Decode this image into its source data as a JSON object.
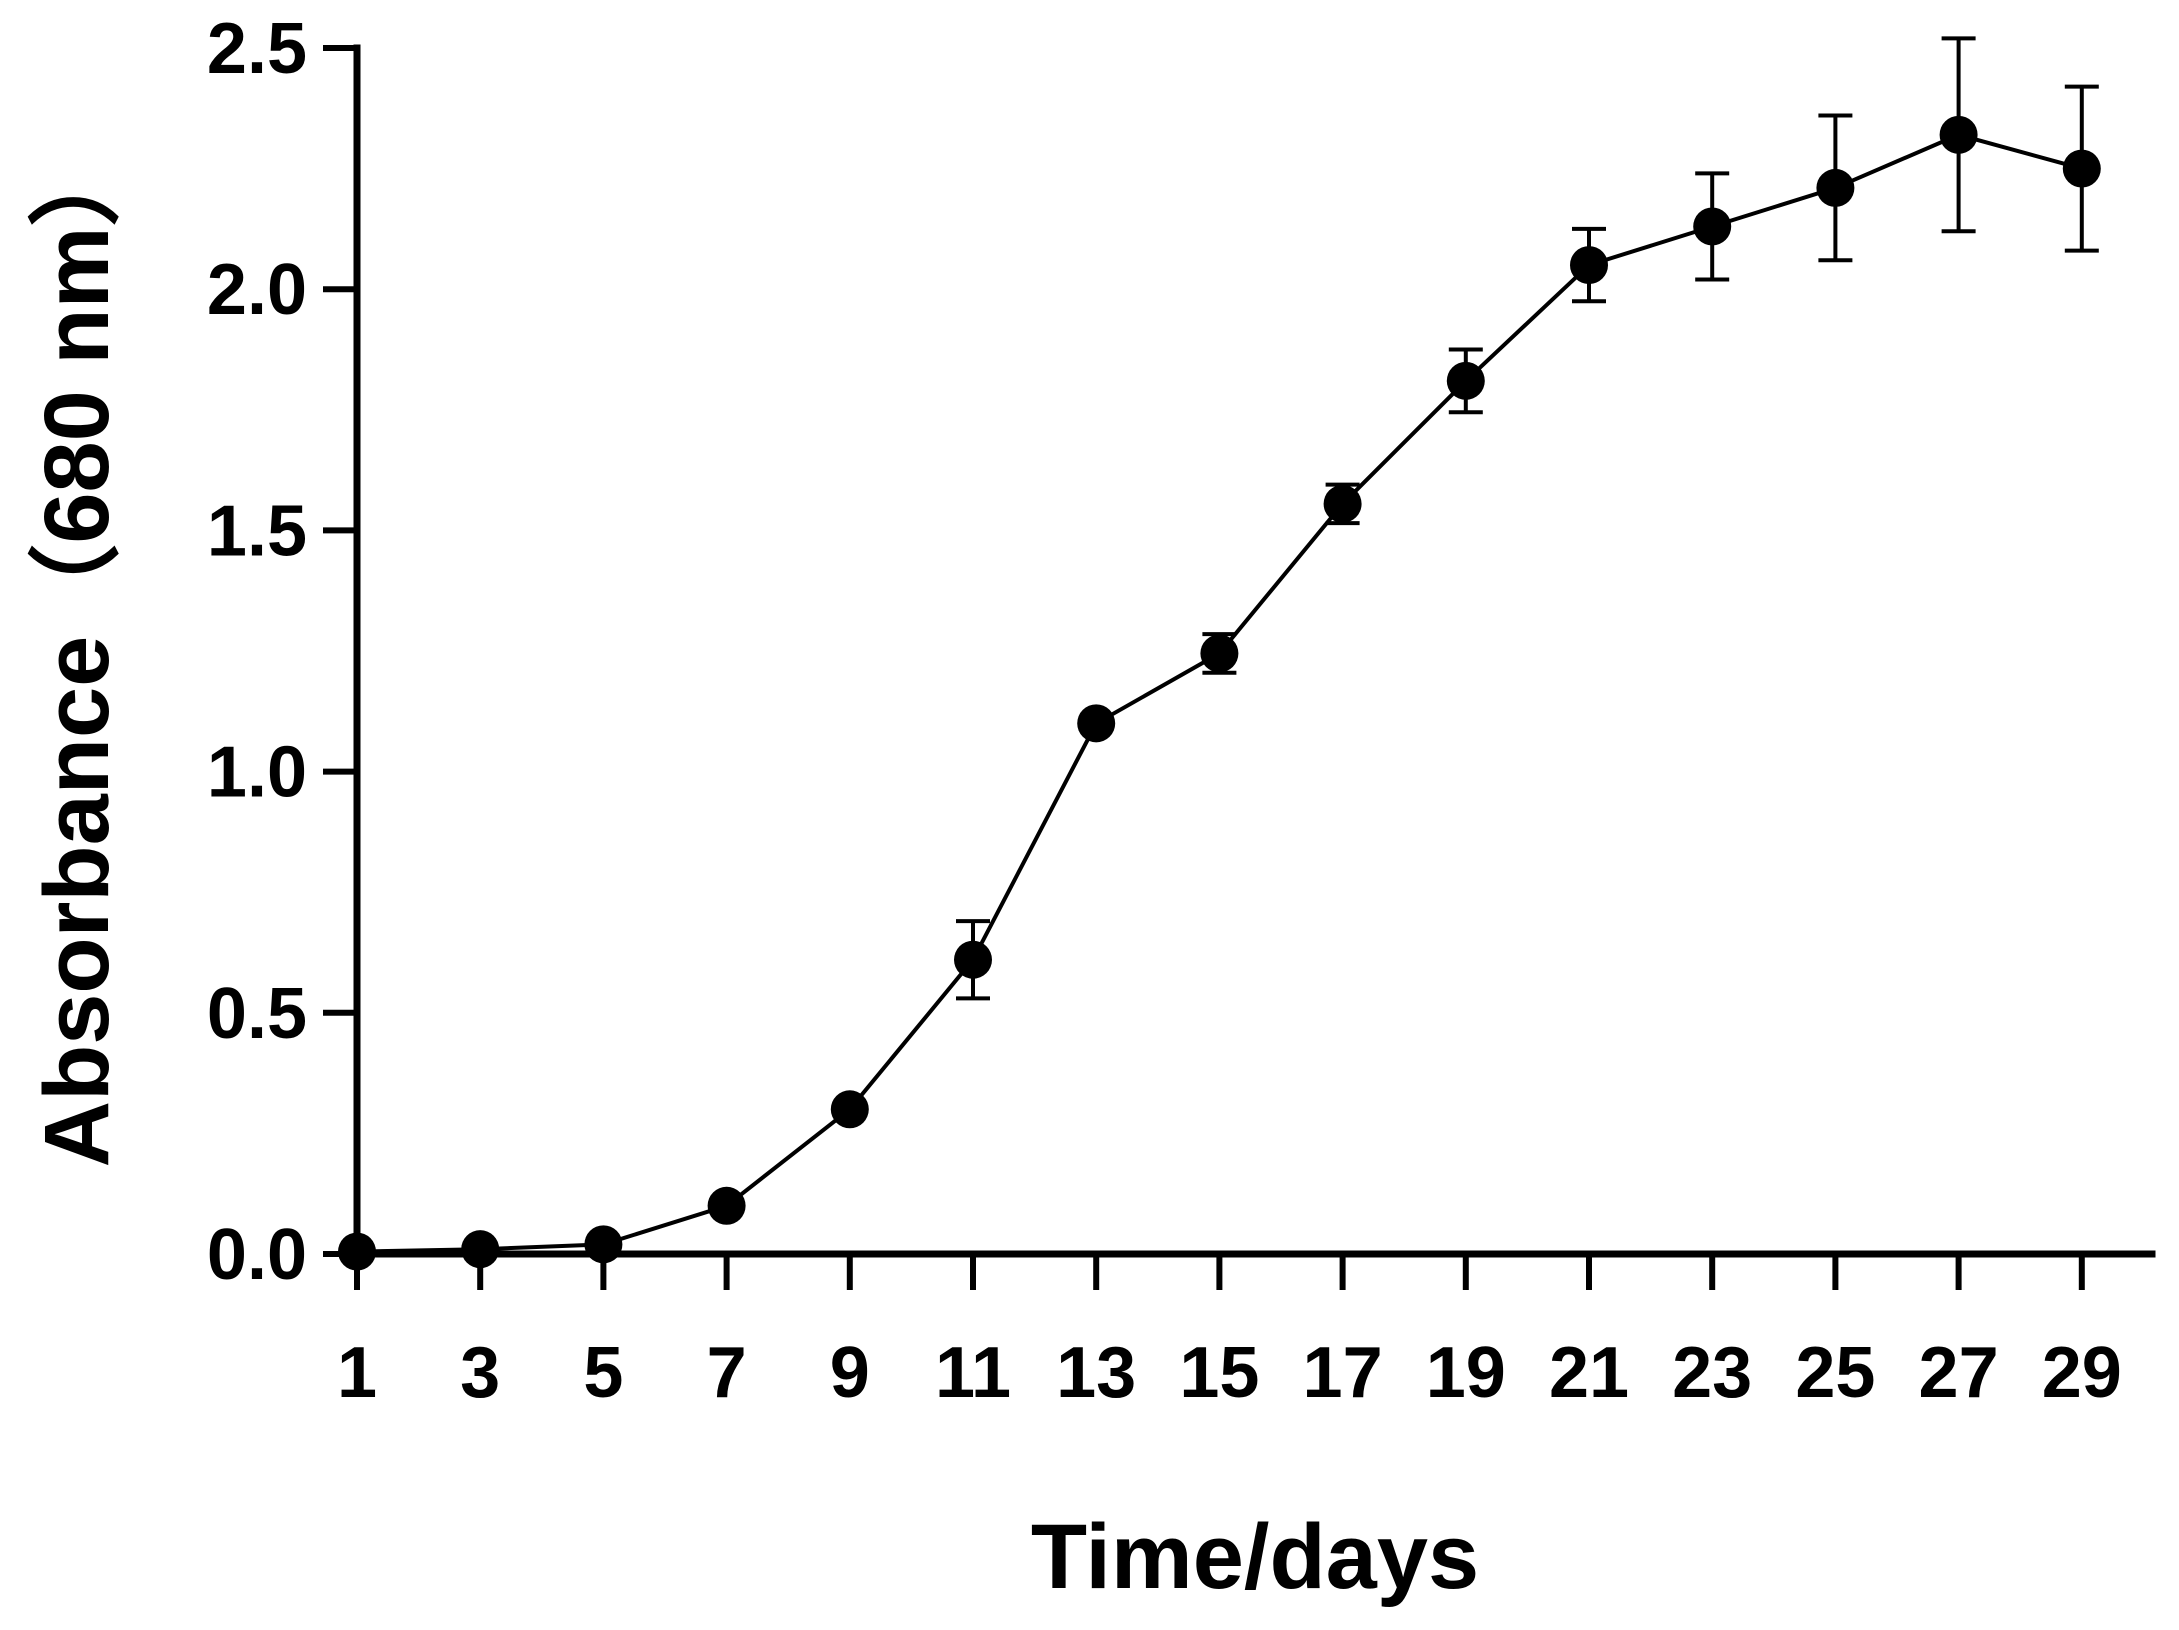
{
  "chart_data": {
    "type": "line",
    "title": "",
    "xlabel": "Time/days",
    "ylabel": "Absorbance（680 nm）",
    "xlim": [
      1,
      30
    ],
    "ylim": [
      0,
      2.5
    ],
    "x_ticks": [
      1,
      3,
      5,
      7,
      9,
      11,
      13,
      15,
      17,
      19,
      21,
      23,
      25,
      27,
      29
    ],
    "y_ticks": [
      "0.0",
      "0.5",
      "1.0",
      "1.5",
      "2.0",
      "2.5"
    ],
    "grid": false,
    "legend": "none",
    "color": "#000000",
    "series": [
      {
        "x": [
          1,
          3,
          5,
          7,
          9,
          11,
          13,
          15,
          17,
          19,
          21,
          23,
          25,
          27,
          29
        ],
        "values": [
          0.005,
          0.01,
          0.02,
          0.1,
          0.3,
          0.61,
          1.1,
          1.245,
          1.555,
          1.81,
          2.05,
          2.13,
          2.21,
          2.32,
          2.25
        ],
        "error": [
          0,
          0,
          0,
          0,
          0,
          0.08,
          0,
          0.04,
          0.04,
          0.065,
          0.075,
          0.11,
          0.15,
          0.2,
          0.17
        ]
      }
    ]
  }
}
